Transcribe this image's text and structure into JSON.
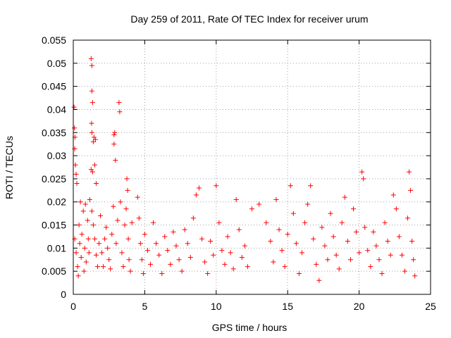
{
  "chart_data": {
    "type": "scatter",
    "title": "Day 259 of 2011, Rate Of TEC Index for receiver urum",
    "xlabel": "GPS time / hours",
    "ylabel": "ROTI / TECUs",
    "xlim": [
      0,
      25
    ],
    "ylim": [
      0,
      0.055
    ],
    "xticks": [
      "0",
      "5",
      "10",
      "15",
      "20",
      "25"
    ],
    "yticks": [
      "0",
      "0.005",
      "0.01",
      "0.015",
      "0.02",
      "0.025",
      "0.03",
      "0.035",
      "0.04",
      "0.045",
      "0.05",
      "0.055"
    ],
    "grid": true,
    "marker": "+",
    "color": "#ff0000",
    "series": [
      {
        "points": [
          [
            0.05,
            0.0405
          ],
          [
            0.08,
            0.036
          ],
          [
            0.1,
            0.0315
          ],
          [
            0.12,
            0.034
          ],
          [
            0.15,
            0.028
          ],
          [
            0.2,
            0.026
          ],
          [
            0.25,
            0.024
          ],
          [
            0.1,
            0.012
          ],
          [
            0.2,
            0.009
          ],
          [
            0.3,
            0.006
          ],
          [
            0.35,
            0.004
          ],
          [
            0.4,
            0.015
          ],
          [
            0.45,
            0.011
          ],
          [
            0.5,
            0.02
          ],
          [
            0.55,
            0.008
          ],
          [
            0.6,
            0.013
          ],
          [
            0.7,
            0.018
          ],
          [
            0.75,
            0.005
          ],
          [
            0.8,
            0.01
          ],
          [
            0.85,
            0.0195
          ],
          [
            0.9,
            0.007
          ],
          [
            1.0,
            0.016
          ],
          [
            1.05,
            0.012
          ],
          [
            1.1,
            0.009
          ],
          [
            1.15,
            0.0205
          ],
          [
            1.25,
            0.051
          ],
          [
            1.3,
            0.0495
          ],
          [
            1.3,
            0.044
          ],
          [
            1.35,
            0.0415
          ],
          [
            1.28,
            0.037
          ],
          [
            1.3,
            0.035
          ],
          [
            1.25,
            0.027
          ],
          [
            1.35,
            0.0265
          ],
          [
            1.4,
            0.033
          ],
          [
            1.45,
            0.034
          ],
          [
            1.55,
            0.0335
          ],
          [
            1.5,
            0.028
          ],
          [
            1.6,
            0.024
          ],
          [
            1.3,
            0.018
          ],
          [
            1.4,
            0.015
          ],
          [
            1.5,
            0.012
          ],
          [
            1.6,
            0.0085
          ],
          [
            1.7,
            0.006
          ],
          [
            1.8,
            0.011
          ],
          [
            1.9,
            0.017
          ],
          [
            2.0,
            0.009
          ],
          [
            2.1,
            0.006
          ],
          [
            2.2,
            0.012
          ],
          [
            2.3,
            0.0145
          ],
          [
            2.4,
            0.01
          ],
          [
            2.5,
            0.0075
          ],
          [
            2.6,
            0.0055
          ],
          [
            2.7,
            0.013
          ],
          [
            2.8,
            0.019
          ],
          [
            2.85,
            0.0345
          ],
          [
            2.9,
            0.035
          ],
          [
            2.95,
            0.029
          ],
          [
            2.85,
            0.0325
          ],
          [
            3.0,
            0.011
          ],
          [
            3.1,
            0.016
          ],
          [
            3.2,
            0.0415
          ],
          [
            3.25,
            0.0395
          ],
          [
            3.3,
            0.02
          ],
          [
            3.4,
            0.009
          ],
          [
            3.5,
            0.006
          ],
          [
            3.6,
            0.015
          ],
          [
            3.7,
            0.0185
          ],
          [
            3.75,
            0.025
          ],
          [
            3.8,
            0.0225
          ],
          [
            3.85,
            0.012
          ],
          [
            3.9,
            0.0075
          ],
          [
            4.0,
            0.005
          ],
          [
            4.1,
            0.0155
          ],
          [
            4.5,
            0.021
          ],
          [
            4.6,
            0.0165
          ],
          [
            4.7,
            0.011
          ],
          [
            4.8,
            0.0075
          ],
          [
            4.9,
            0.0045
          ],
          [
            5.0,
            0.013
          ],
          [
            5.2,
            0.0095
          ],
          [
            5.4,
            0.0065
          ],
          [
            5.6,
            0.0155
          ],
          [
            5.8,
            0.011
          ],
          [
            6.0,
            0.0085
          ],
          [
            6.2,
            0.0045
          ],
          [
            6.4,
            0.0125
          ],
          [
            6.6,
            0.0095
          ],
          [
            6.8,
            0.0065
          ],
          [
            7.0,
            0.0135
          ],
          [
            7.2,
            0.0105
          ],
          [
            7.4,
            0.0075
          ],
          [
            7.6,
            0.005
          ],
          [
            7.8,
            0.014
          ],
          [
            8.0,
            0.011
          ],
          [
            8.2,
            0.008
          ],
          [
            8.4,
            0.0165
          ],
          [
            8.6,
            0.0215
          ],
          [
            8.8,
            0.023
          ],
          [
            9.0,
            0.012
          ],
          [
            9.2,
            0.007
          ],
          [
            9.4,
            0.0045
          ],
          [
            9.6,
            0.0115
          ],
          [
            9.8,
            0.0085
          ],
          [
            10.0,
            0.0235
          ],
          [
            10.2,
            0.0155
          ],
          [
            10.4,
            0.0095
          ],
          [
            10.6,
            0.0065
          ],
          [
            10.8,
            0.0125
          ],
          [
            11.0,
            0.009
          ],
          [
            11.2,
            0.0055
          ],
          [
            11.4,
            0.0205
          ],
          [
            11.6,
            0.014
          ],
          [
            11.8,
            0.008
          ],
          [
            12.0,
            0.0105
          ],
          [
            12.2,
            0.006
          ],
          [
            12.5,
            0.0185
          ],
          [
            13.0,
            0.0195
          ],
          [
            13.5,
            0.0155
          ],
          [
            13.8,
            0.0115
          ],
          [
            14.0,
            0.007
          ],
          [
            14.2,
            0.0205
          ],
          [
            14.4,
            0.014
          ],
          [
            14.6,
            0.0095
          ],
          [
            14.8,
            0.006
          ],
          [
            15.0,
            0.013
          ],
          [
            15.2,
            0.0235
          ],
          [
            15.4,
            0.0175
          ],
          [
            15.6,
            0.011
          ],
          [
            15.8,
            0.0045
          ],
          [
            16.0,
            0.009
          ],
          [
            16.2,
            0.0155
          ],
          [
            16.4,
            0.0195
          ],
          [
            16.6,
            0.0235
          ],
          [
            16.8,
            0.012
          ],
          [
            17.0,
            0.0065
          ],
          [
            17.2,
            0.003
          ],
          [
            17.4,
            0.0145
          ],
          [
            17.6,
            0.0105
          ],
          [
            17.8,
            0.0075
          ],
          [
            18.0,
            0.0175
          ],
          [
            18.2,
            0.0125
          ],
          [
            18.4,
            0.0085
          ],
          [
            18.6,
            0.0055
          ],
          [
            18.8,
            0.0155
          ],
          [
            19.0,
            0.021
          ],
          [
            19.2,
            0.0115
          ],
          [
            19.4,
            0.0075
          ],
          [
            19.6,
            0.0185
          ],
          [
            19.8,
            0.0135
          ],
          [
            20.0,
            0.009
          ],
          [
            20.2,
            0.0265
          ],
          [
            20.3,
            0.025
          ],
          [
            20.4,
            0.0145
          ],
          [
            20.6,
            0.0095
          ],
          [
            20.8,
            0.006
          ],
          [
            21.0,
            0.0135
          ],
          [
            21.2,
            0.0105
          ],
          [
            21.4,
            0.0075
          ],
          [
            21.6,
            0.0045
          ],
          [
            21.8,
            0.0155
          ],
          [
            22.0,
            0.0115
          ],
          [
            22.2,
            0.0085
          ],
          [
            22.4,
            0.0215
          ],
          [
            22.6,
            0.0185
          ],
          [
            22.8,
            0.0125
          ],
          [
            23.0,
            0.0085
          ],
          [
            23.2,
            0.005
          ],
          [
            23.4,
            0.0165
          ],
          [
            23.5,
            0.0265
          ],
          [
            23.6,
            0.0225
          ],
          [
            23.7,
            0.0115
          ],
          [
            23.8,
            0.0075
          ],
          [
            23.9,
            0.004
          ]
        ]
      }
    ]
  }
}
